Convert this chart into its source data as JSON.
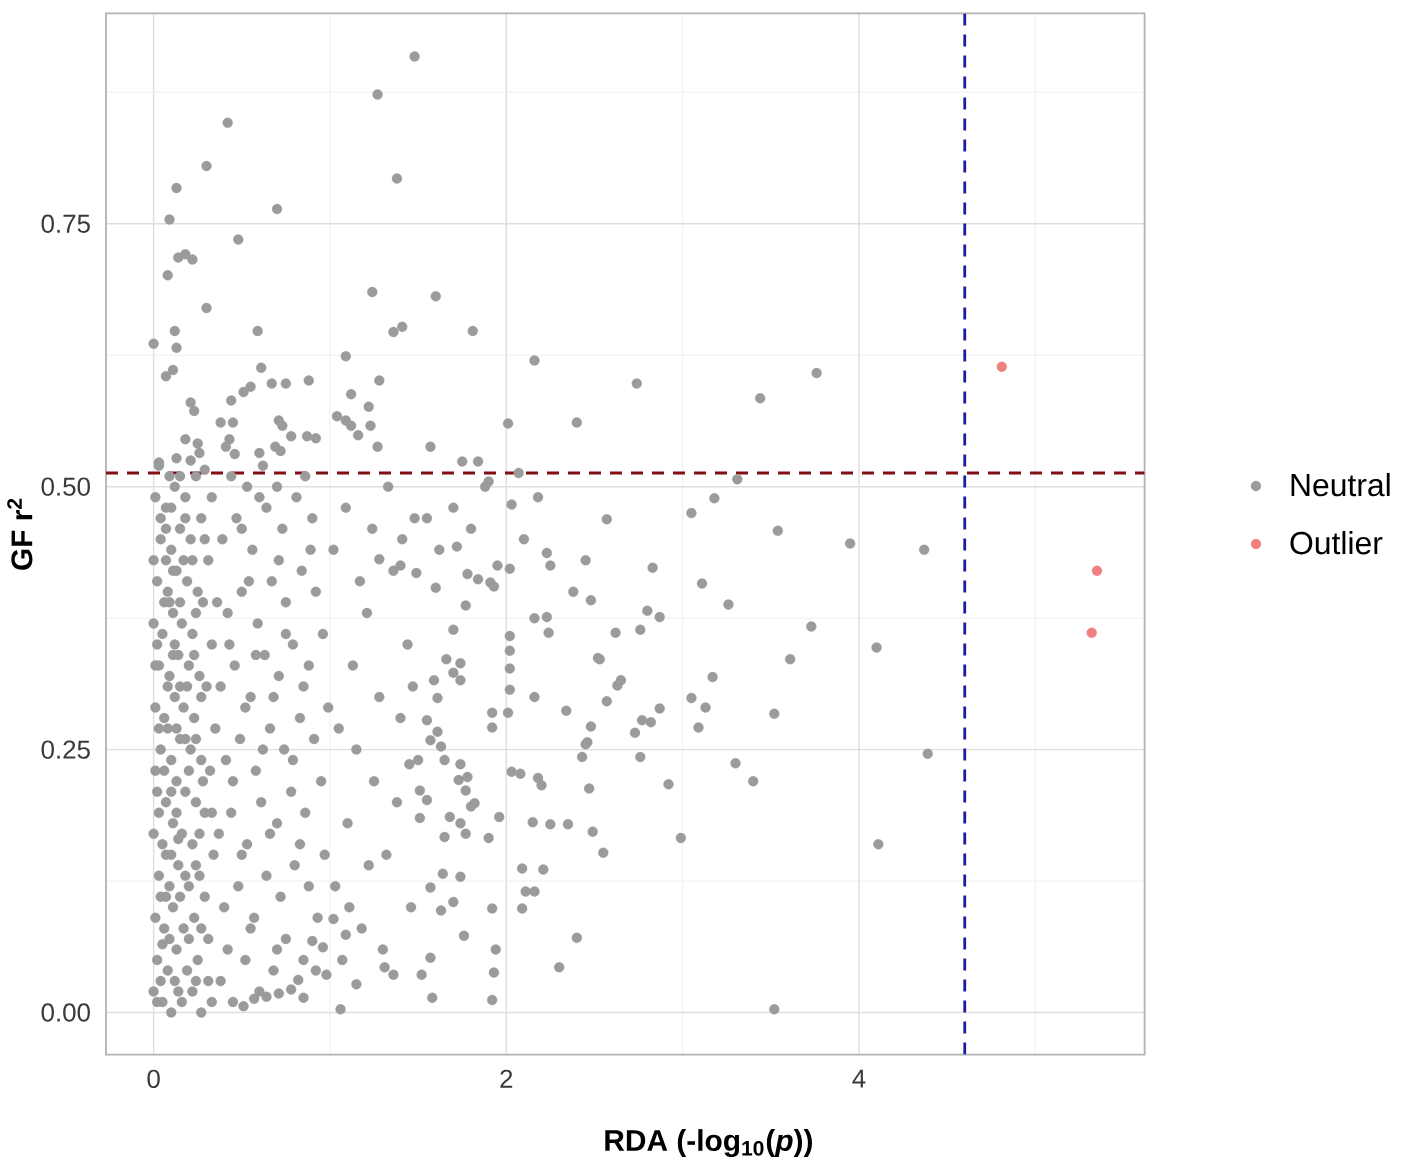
{
  "chart_data": {
    "type": "scatter",
    "xlabel": "RDA (-log$_{10}$(*p*))",
    "ylabel": "GF r$^{2}$",
    "xlim": [
      -0.27,
      5.62
    ],
    "ylim": [
      -0.04,
      0.95
    ],
    "xticks": [
      0,
      {
        "value": 1,
        "label": null
      },
      2,
      {
        "value": 3,
        "label": null
      },
      4,
      {
        "value": 5,
        "label": null
      }
    ],
    "yticks": [
      {
        "value": 0,
        "label": "0.00"
      },
      {
        "value": 0.125,
        "label": null
      },
      {
        "value": 0.25,
        "label": "0.25"
      },
      {
        "value": 0.375,
        "label": null
      },
      {
        "value": 0.5,
        "label": "0.50"
      },
      {
        "value": 0.625,
        "label": null
      },
      {
        "value": 0.75,
        "label": "0.75"
      },
      {
        "value": 0.875,
        "label": null
      }
    ],
    "grid": true,
    "legend": "right",
    "marker": "circle",
    "ref_lines": [
      {
        "axis": "x",
        "value": 4.6,
        "color": "#1c1ca0",
        "line_style": "dashed"
      },
      {
        "axis": "y",
        "value": 0.513,
        "color": "#800f14",
        "line_style": "dashed"
      }
    ],
    "series": [
      {
        "name": "Neutral",
        "color": "#9b9b9b",
        "x": [
          1.48,
          1.27,
          0.42,
          0.3,
          0.13,
          1.38,
          0.7,
          0.09,
          0.48,
          0.14,
          0.18,
          0.22,
          0.08,
          1.24,
          1.6,
          0.3,
          0.12,
          0.59,
          1.36,
          1.41,
          1.81,
          0.0,
          0.13,
          1.09,
          2.16,
          0.61,
          0.11,
          0.07,
          1.28,
          0.88,
          0.67,
          0.75,
          0.55,
          0.51,
          0.44,
          1.12,
          1.22,
          0.21,
          0.23,
          2.01,
          2.4,
          0.38,
          0.45,
          0.71,
          0.73,
          1.04,
          1.09,
          1.12,
          1.16,
          1.23,
          0.18,
          0.25,
          0.26,
          0.43,
          0.41,
          0.69,
          0.78,
          0.87,
          0.92,
          1.27,
          1.57,
          0.72,
          0.6,
          0.46,
          0.03,
          0.13,
          0.21,
          0.29,
          1.75,
          1.84,
          1.9,
          2.03,
          2.07,
          2.23,
          2.74,
          3.76,
          3.44,
          3.31,
          3.18,
          3.05,
          2.57,
          3.54,
          3.95,
          4.37,
          2.83,
          3.11,
          2.48,
          3.26,
          2.8,
          2.87,
          3.73,
          2.62,
          2.76,
          4.1,
          2.53,
          3.61,
          3.17,
          2.65,
          2.63,
          3.05,
          2.57,
          3.13,
          2.87,
          2.34,
          3.52,
          2.77,
          2.82,
          2.48,
          3.09,
          2.73,
          2.46,
          4.39,
          2.43,
          2.76,
          3.3,
          3.4,
          2.92,
          2.47,
          2.35,
          2.49,
          2.99,
          4.11,
          2.55,
          2.4,
          2.3,
          3.52,
          2.52,
          2.25,
          1.95,
          2.02,
          1.78,
          1.84,
          1.91,
          1.93,
          1.72,
          1.7,
          2.02,
          2.16,
          2.23,
          2.24,
          2.02,
          2.16,
          2.01,
          1.92,
          2.03,
          2.08,
          2.18,
          2.2,
          2.45,
          2.15,
          2.25,
          1.96,
          1.9,
          2.09,
          2.21,
          2.11,
          2.16,
          2.09,
          1.92,
          1.94,
          1.93,
          1.92,
          1.76,
          1.7,
          1.74,
          1.64,
          1.57,
          1.63,
          1.57,
          1.58,
          1.52,
          1.36,
          1.31,
          1.06,
          1.15,
          0.92,
          0.98,
          0.96,
          1.09,
          1.11,
          0.9,
          1.02,
          0.85,
          0.78,
          0.82,
          0.71,
          0.64,
          0.57,
          0.51,
          1.61,
          1.55,
          1.61,
          1.57,
          1.63,
          1.5,
          1.45,
          1.51,
          1.55,
          1.51,
          1.65,
          1.74,
          1.73,
          1.78,
          1.77,
          1.82,
          1.68,
          1.74,
          1.77,
          1.65,
          1.8,
          1.77,
          1.74,
          1.7,
          1.74,
          1.66,
          1.59,
          2.02,
          1.92,
          2.02,
          1.6,
          1.49,
          1.4,
          1.28,
          1.55,
          1.62,
          1.7,
          1.8,
          1.88,
          2.1,
          2.18,
          2.45,
          2.38,
          0.0,
          0.05,
          0.1,
          0.16,
          0.22,
          0.27,
          0.33,
          0.02,
          0.08,
          0.13,
          0.19,
          0.25,
          0.31,
          0.01,
          0.06,
          0.11,
          0.17,
          0.23,
          0.29,
          0.03,
          0.09,
          0.14,
          0.2,
          0.26,
          0.34,
          0.0,
          0.05,
          0.11,
          0.16,
          0.22,
          0.29,
          0.02,
          0.07,
          0.13,
          0.18,
          0.24,
          0.32,
          0.04,
          0.1,
          0.15,
          0.21,
          0.27,
          0.35,
          0.01,
          0.06,
          0.12,
          0.17,
          0.23,
          0.3,
          0.03,
          0.09,
          0.14,
          0.2,
          0.26,
          0.33,
          0.0,
          0.05,
          0.11,
          0.16,
          0.22,
          0.28,
          0.02,
          0.08,
          0.13,
          0.19,
          0.25,
          0.31,
          0.04,
          0.1,
          0.15,
          0.21,
          0.27,
          0.01,
          0.07,
          0.12,
          0.18,
          0.24,
          0.03,
          0.09,
          0.04,
          0.12,
          0.07,
          0.15,
          0.03,
          0.13,
          0.08,
          0.18,
          0.02,
          0.12,
          0.07,
          0.17,
          0.05,
          0.1,
          0.06,
          0.15,
          0.09,
          0.04,
          0.38,
          0.45,
          0.52,
          0.6,
          0.68,
          0.75,
          0.85,
          0.93,
          0.4,
          0.48,
          0.57,
          0.64,
          0.72,
          0.8,
          0.88,
          0.97,
          0.37,
          0.44,
          0.53,
          0.61,
          0.7,
          0.78,
          0.86,
          0.95,
          0.41,
          0.49,
          0.58,
          0.66,
          0.74,
          0.83,
          0.91,
          0.99,
          0.38,
          0.46,
          0.55,
          0.63,
          0.71,
          0.79,
          0.88,
          0.96,
          0.42,
          0.5,
          0.59,
          0.67,
          0.75,
          0.84,
          0.92,
          0.39,
          0.47,
          0.56,
          0.64,
          0.73,
          0.81,
          0.9,
          0.44,
          0.53,
          0.62,
          0.7,
          0.86,
          1.03,
          1.1,
          1.18,
          1.25,
          1.32,
          1.4,
          1.46,
          1.05,
          1.13,
          1.21,
          1.28,
          1.36,
          1.44,
          1.02,
          1.09,
          1.17,
          1.24,
          1.33,
          1.41,
          1.48,
          1.07,
          1.15,
          1.22,
          1.3,
          1.38,
          1.47,
          0.02,
          0.14,
          0.24,
          0.09,
          0.2,
          0.27,
          0.04,
          0.18,
          0.24,
          0.07,
          0.14,
          0.26,
          0.01,
          0.1,
          0.2,
          0.28,
          0.03,
          0.13,
          0.24,
          0.08,
          0.19,
          0.27,
          0.01,
          0.11,
          0.23,
          0.06,
          0.15,
          0.24,
          0.0,
          0.11,
          0.22,
          0.29,
          0.07,
          0.18,
          0.1,
          0.15,
          0.33,
          0.31,
          0.33,
          0.36,
          0.42,
          0.55,
          0.7,
          0.5,
          0.66,
          0.83,
          0.45,
          0.62,
          0.79,
          0.52,
          0.68,
          0.85,
          0.43,
          0.58,
          0.75,
          0.54,
          0.71,
          0.89,
          0.5,
          0.6
        ],
        "values": [
          0.909,
          0.873,
          0.846,
          0.805,
          0.784,
          0.793,
          0.764,
          0.754,
          0.735,
          0.718,
          0.721,
          0.716,
          0.701,
          0.685,
          0.681,
          0.67,
          0.648,
          0.648,
          0.647,
          0.652,
          0.648,
          0.636,
          0.632,
          0.624,
          0.62,
          0.613,
          0.611,
          0.605,
          0.601,
          0.601,
          0.598,
          0.598,
          0.595,
          0.59,
          0.582,
          0.588,
          0.576,
          0.58,
          0.572,
          0.56,
          0.561,
          0.561,
          0.561,
          0.563,
          0.558,
          0.567,
          0.563,
          0.558,
          0.549,
          0.558,
          0.545,
          0.541,
          0.532,
          0.545,
          0.538,
          0.538,
          0.548,
          0.548,
          0.546,
          0.538,
          0.538,
          0.534,
          0.532,
          0.531,
          0.523,
          0.527,
          0.525,
          0.516,
          0.524,
          0.524,
          0.505,
          0.483,
          0.513,
          0.437,
          0.598,
          0.608,
          0.584,
          0.507,
          0.489,
          0.475,
          0.469,
          0.458,
          0.446,
          0.44,
          0.423,
          0.408,
          0.392,
          0.388,
          0.382,
          0.376,
          0.367,
          0.361,
          0.364,
          0.347,
          0.336,
          0.336,
          0.319,
          0.316,
          0.311,
          0.299,
          0.296,
          0.29,
          0.289,
          0.287,
          0.284,
          0.278,
          0.276,
          0.272,
          0.271,
          0.266,
          0.257,
          0.246,
          0.243,
          0.243,
          0.237,
          0.22,
          0.217,
          0.213,
          0.179,
          0.172,
          0.166,
          0.16,
          0.152,
          0.071,
          0.043,
          0.003,
          0.337,
          0.425,
          0.425,
          0.422,
          0.417,
          0.412,
          0.409,
          0.405,
          0.443,
          0.364,
          0.358,
          0.375,
          0.376,
          0.361,
          0.327,
          0.3,
          0.285,
          0.271,
          0.229,
          0.227,
          0.223,
          0.216,
          0.255,
          0.181,
          0.179,
          0.186,
          0.166,
          0.137,
          0.136,
          0.115,
          0.115,
          0.099,
          0.099,
          0.06,
          0.038,
          0.012,
          0.073,
          0.105,
          0.129,
          0.132,
          0.119,
          0.097,
          0.052,
          0.014,
          0.036,
          0.036,
          0.043,
          0.003,
          0.027,
          0.04,
          0.036,
          0.062,
          0.074,
          0.1,
          0.068,
          0.089,
          0.014,
          0.022,
          0.031,
          0.018,
          0.015,
          0.013,
          0.006,
          0.299,
          0.278,
          0.267,
          0.259,
          0.253,
          0.24,
          0.236,
          0.211,
          0.202,
          0.185,
          0.24,
          0.236,
          0.221,
          0.224,
          0.211,
          0.199,
          0.186,
          0.18,
          0.17,
          0.167,
          0.196,
          0.387,
          0.332,
          0.323,
          0.316,
          0.336,
          0.316,
          0.307,
          0.285,
          0.344,
          0.404,
          0.418,
          0.425,
          0.431,
          0.47,
          0.44,
          0.48,
          0.46,
          0.5,
          0.45,
          0.49,
          0.43,
          0.4,
          0.02,
          0.01,
          0.0,
          0.01,
          0.02,
          0.0,
          0.01,
          0.05,
          0.04,
          0.06,
          0.04,
          0.05,
          0.03,
          0.09,
          0.08,
          0.1,
          0.08,
          0.09,
          0.11,
          0.13,
          0.12,
          0.14,
          0.12,
          0.13,
          0.15,
          0.17,
          0.16,
          0.18,
          0.17,
          0.16,
          0.19,
          0.21,
          0.2,
          0.22,
          0.21,
          0.2,
          0.23,
          0.25,
          0.24,
          0.26,
          0.25,
          0.24,
          0.27,
          0.29,
          0.28,
          0.3,
          0.29,
          0.28,
          0.31,
          0.33,
          0.32,
          0.34,
          0.33,
          0.32,
          0.35,
          0.37,
          0.36,
          0.38,
          0.37,
          0.36,
          0.39,
          0.41,
          0.4,
          0.42,
          0.41,
          0.4,
          0.43,
          0.45,
          0.44,
          0.46,
          0.45,
          0.47,
          0.49,
          0.48,
          0.5,
          0.49,
          0.51,
          0.52,
          0.51,
          0.03,
          0.03,
          0.11,
          0.11,
          0.19,
          0.19,
          0.27,
          0.26,
          0.35,
          0.35,
          0.43,
          0.43,
          0.065,
          0.15,
          0.23,
          0.31,
          0.39,
          0.47,
          0.03,
          0.01,
          0.05,
          0.02,
          0.04,
          0.07,
          0.05,
          0.09,
          0.1,
          0.12,
          0.09,
          0.13,
          0.11,
          0.14,
          0.12,
          0.15,
          0.17,
          0.19,
          0.16,
          0.2,
          0.18,
          0.21,
          0.19,
          0.22,
          0.24,
          0.26,
          0.23,
          0.27,
          0.25,
          0.28,
          0.26,
          0.29,
          0.31,
          0.33,
          0.3,
          0.34,
          0.32,
          0.35,
          0.33,
          0.36,
          0.38,
          0.4,
          0.37,
          0.41,
          0.39,
          0.42,
          0.4,
          0.45,
          0.47,
          0.44,
          0.48,
          0.46,
          0.49,
          0.47,
          0.51,
          0.5,
          0.52,
          0.5,
          0.51,
          0.12,
          0.18,
          0.08,
          0.22,
          0.15,
          0.28,
          0.1,
          0.27,
          0.33,
          0.38,
          0.3,
          0.42,
          0.35,
          0.44,
          0.48,
          0.41,
          0.46,
          0.5,
          0.45,
          0.47,
          0.05,
          0.25,
          0.14,
          0.06,
          0.2,
          0.31,
          0.01,
          0.02,
          0.03,
          0.07,
          0.07,
          0.08,
          0.11,
          0.13,
          0.14,
          0.15,
          0.165,
          0.17,
          0.23,
          0.21,
          0.23,
          0.22,
          0.27,
          0.27,
          0.26,
          0.31,
          0.31,
          0.3,
          0.33,
          0.34,
          0.34,
          0.39,
          0.39,
          0.38,
          0.43,
          0.42,
          0.43,
          0.45,
          0.46,
          0.47,
          0.48,
          0.51,
          0.49,
          0.07,
          0.19,
          0.39,
          0.06,
          0.08,
          0.06,
          0.15,
          0.17,
          0.16,
          0.22,
          0.25,
          0.24,
          0.29,
          0.3,
          0.31,
          0.35,
          0.34,
          0.36,
          0.41,
          0.43,
          0.44,
          0.46,
          0.49
        ]
      },
      {
        "name": "Outlier",
        "color": "#f07f7f",
        "x": [
          4.81,
          5.35,
          5.32
        ],
        "values": [
          0.614,
          0.42,
          0.361
        ]
      }
    ]
  }
}
